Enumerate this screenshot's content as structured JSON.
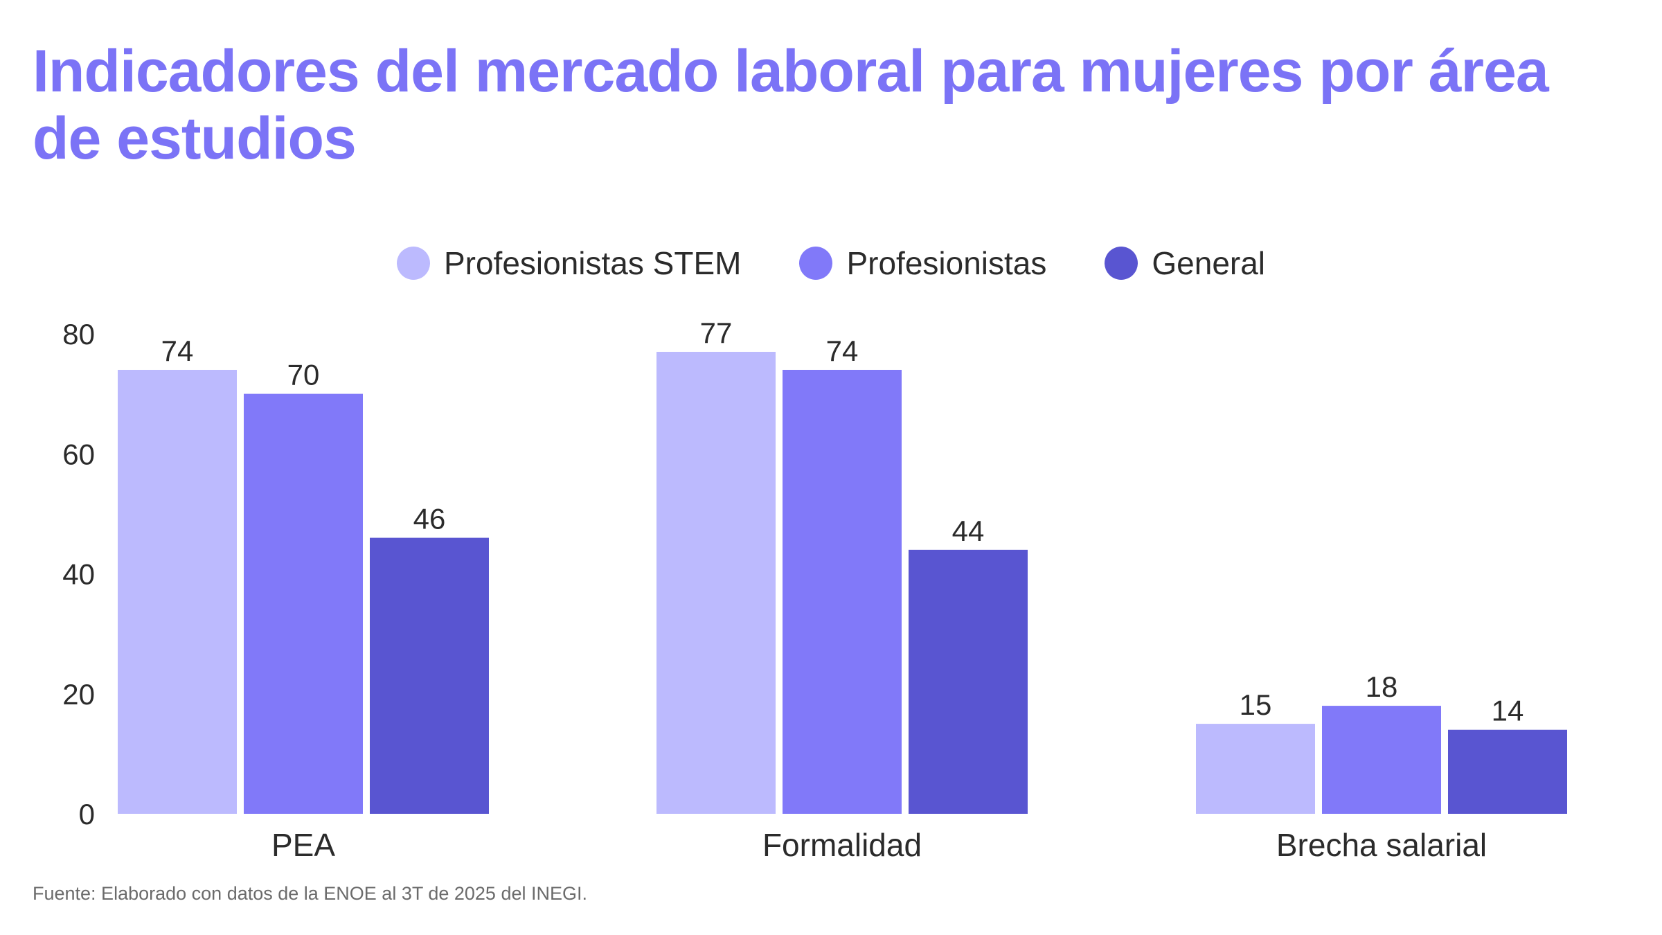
{
  "title": "Indicadores del mercado laboral para mujeres por área de estudios",
  "source": "Fuente: Elaborado con datos de la ENOE al 3T de 2025 del INEGI.",
  "chart_data": {
    "type": "bar",
    "title": "Indicadores del mercado laboral para mujeres por área de estudios",
    "xlabel": "",
    "ylabel": "",
    "categories": [
      "PEA",
      "Formalidad",
      "Brecha salarial"
    ],
    "series": [
      {
        "name": "Profesionistas STEM",
        "color": "#bcbafe",
        "values": [
          74,
          77,
          15
        ]
      },
      {
        "name": "Profesionistas",
        "color": "#8179f9",
        "values": [
          70,
          74,
          18
        ]
      },
      {
        "name": "General",
        "color": "#5955d1",
        "values": [
          46,
          44,
          14
        ]
      }
    ],
    "ylim": [
      0,
      80
    ],
    "yticks": [
      0,
      20,
      40,
      60,
      80
    ],
    "grid": false,
    "legend_position": "top-center",
    "data_labels": true
  }
}
